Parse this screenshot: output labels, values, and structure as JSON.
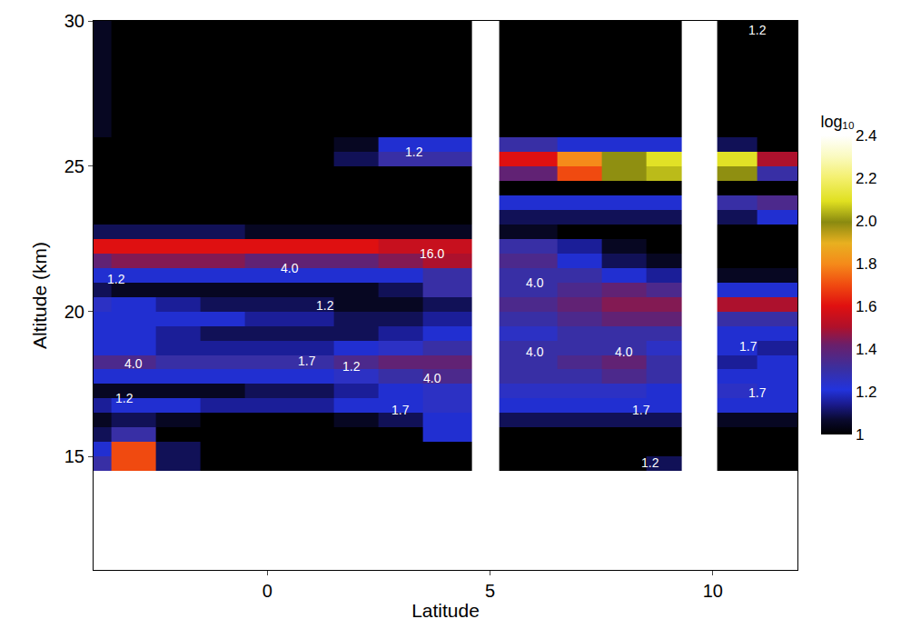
{
  "chart_data": {
    "type": "heatmap",
    "x_label": "Latitude",
    "y_label": "Altitude (km)",
    "xlim": [
      -3.9,
      11.9
    ],
    "ylim": [
      11.1,
      30
    ],
    "xticks": [
      0,
      5,
      10
    ],
    "yticks": [
      15,
      20,
      25,
      30
    ],
    "x_edges": [
      -4.5,
      -3.5,
      -2.5,
      -1.5,
      -0.5,
      0.5,
      1.5,
      2.5,
      3.5,
      4.6,
      5.2,
      6.5,
      7.5,
      8.5,
      9.3,
      10.1,
      11,
      12.5
    ],
    "y_edges": [
      14.5,
      15,
      15.5,
      16,
      16.5,
      17,
      17.5,
      18,
      18.5,
      19,
      19.5,
      20,
      20.5,
      21,
      21.5,
      22,
      22.5,
      23,
      23.5,
      24,
      24.5,
      25,
      25.5,
      26,
      26.5,
      27,
      27.5,
      28,
      28.5,
      29,
      29.5,
      30
    ],
    "z": [
      [
        1.3,
        1.7,
        1.1,
        1,
        1,
        1,
        1,
        1,
        1,
        null,
        1,
        1,
        1,
        1.1,
        null,
        1,
        1
      ],
      [
        1.2,
        1.7,
        1.1,
        1,
        1,
        1,
        1,
        1,
        1,
        null,
        1,
        1,
        1,
        1,
        null,
        1,
        1
      ],
      [
        1.1,
        1.3,
        1,
        1,
        1,
        1,
        1,
        1,
        1.2,
        null,
        1,
        1,
        1,
        1,
        null,
        1,
        1
      ],
      [
        1.05,
        1.1,
        1.05,
        1,
        1,
        1,
        1.05,
        1.1,
        1.2,
        null,
        1.1,
        1.1,
        1.1,
        1.1,
        null,
        1.05,
        1.05
      ],
      [
        1.15,
        1.2,
        1.2,
        1.15,
        1.15,
        1.15,
        1.2,
        1.2,
        1.25,
        null,
        1.2,
        1.2,
        1.2,
        1.2,
        null,
        1.2,
        1.2
      ],
      [
        1.05,
        1.05,
        1.05,
        1.05,
        1.1,
        1.1,
        1.15,
        1.2,
        1.25,
        null,
        1.25,
        1.25,
        1.25,
        1.2,
        null,
        1.25,
        1.2
      ],
      [
        1.2,
        1.2,
        1.2,
        1.2,
        1.2,
        1.2,
        1.25,
        1.3,
        1.35,
        null,
        1.3,
        1.3,
        1.35,
        1.3,
        null,
        1.2,
        1.2
      ],
      [
        1.35,
        1.35,
        1.3,
        1.3,
        1.3,
        1.3,
        1.35,
        1.4,
        1.4,
        null,
        1.3,
        1.35,
        1.4,
        1.3,
        null,
        1.15,
        1.2
      ],
      [
        1.2,
        1.2,
        1.15,
        1.15,
        1.15,
        1.15,
        1.2,
        1.25,
        1.3,
        null,
        1.3,
        1.3,
        1.3,
        1.25,
        null,
        1.2,
        1.15
      ],
      [
        1.2,
        1.2,
        1.15,
        1.1,
        1.1,
        1.1,
        1.1,
        1.15,
        1.2,
        null,
        1.25,
        1.3,
        1.3,
        1.3,
        null,
        1.2,
        1.2
      ],
      [
        1.2,
        1.2,
        1.2,
        1.2,
        1.15,
        1.15,
        1.1,
        1.1,
        1.15,
        null,
        1.3,
        1.35,
        1.4,
        1.4,
        null,
        1.3,
        1.3
      ],
      [
        1.25,
        1.2,
        1.15,
        1.1,
        1.1,
        1.1,
        1.05,
        1.05,
        1.1,
        null,
        1.35,
        1.4,
        1.45,
        1.45,
        null,
        1.5,
        1.5
      ],
      [
        1.1,
        1.05,
        1.05,
        1.05,
        1.05,
        1.05,
        1.05,
        1.1,
        1.3,
        null,
        1.3,
        1.35,
        1.4,
        1.35,
        null,
        1.2,
        1.2
      ],
      [
        1.2,
        1.2,
        1.2,
        1.2,
        1.2,
        1.2,
        1.2,
        1.2,
        1.3,
        null,
        1.3,
        1.3,
        1.2,
        1.15,
        null,
        1.05,
        1.05
      ],
      [
        1.4,
        1.45,
        1.45,
        1.45,
        1.4,
        1.4,
        1.4,
        1.45,
        1.5,
        null,
        1.35,
        1.2,
        1.1,
        1.05,
        null,
        1,
        1
      ],
      [
        1.6,
        1.6,
        1.6,
        1.6,
        1.6,
        1.6,
        1.6,
        1.55,
        1.55,
        null,
        1.3,
        1.15,
        1.05,
        1,
        null,
        1,
        1
      ],
      [
        1.1,
        1.1,
        1.1,
        1.1,
        1.05,
        1.05,
        1.05,
        1.05,
        1.05,
        null,
        1.05,
        1,
        1,
        1,
        null,
        1,
        1
      ],
      [
        1,
        1,
        1,
        1,
        1,
        1,
        1,
        1,
        1,
        null,
        1.1,
        1.1,
        1.1,
        1.1,
        null,
        1.1,
        1.2
      ],
      [
        1,
        1,
        1,
        1,
        1,
        1,
        1,
        1,
        1,
        null,
        1.2,
        1.2,
        1.2,
        1.2,
        null,
        1.3,
        1.35
      ],
      [
        1,
        1,
        1,
        1,
        1,
        1,
        1,
        1,
        1,
        null,
        1,
        1,
        1,
        1,
        null,
        1,
        1
      ],
      [
        1,
        1,
        1,
        1,
        1,
        1,
        1,
        1,
        1,
        null,
        1.4,
        1.7,
        2.0,
        2.05,
        null,
        2.0,
        1.3
      ],
      [
        1,
        1,
        1,
        1,
        1,
        1,
        1.1,
        1.3,
        1.3,
        null,
        1.6,
        1.8,
        2.0,
        2.1,
        null,
        2.1,
        1.5
      ],
      [
        1,
        1,
        1,
        1,
        1,
        1,
        1.05,
        1.2,
        1.2,
        null,
        1.3,
        1.2,
        1.2,
        1.2,
        null,
        1.1,
        1
      ],
      [
        1.05,
        1,
        1,
        1,
        1,
        1,
        1,
        1,
        1,
        null,
        1,
        1,
        1,
        1,
        null,
        1,
        1
      ],
      [
        1.05,
        1,
        1,
        1,
        1,
        1,
        1,
        1,
        1,
        null,
        1,
        1,
        1,
        1,
        null,
        1,
        1
      ],
      [
        1.05,
        1,
        1,
        1,
        1,
        1,
        1,
        1,
        1,
        null,
        1,
        1,
        1,
        1,
        null,
        1,
        1
      ],
      [
        1.05,
        1,
        1,
        1,
        1,
        1,
        1,
        1,
        1,
        null,
        1,
        1,
        1,
        1,
        null,
        1,
        1
      ],
      [
        1.05,
        1,
        1,
        1,
        1,
        1,
        1,
        1,
        1,
        null,
        1,
        1,
        1,
        1,
        null,
        1,
        1
      ],
      [
        1.05,
        1,
        1,
        1,
        1,
        1,
        1,
        1,
        1,
        null,
        1,
        1,
        1,
        1,
        null,
        1,
        1
      ],
      [
        1.05,
        1,
        1,
        1,
        1,
        1,
        1,
        1,
        1,
        null,
        1,
        1,
        1,
        1,
        null,
        1,
        1
      ],
      [
        1.05,
        1,
        1,
        1,
        1,
        1,
        1,
        1,
        1,
        null,
        1,
        1,
        1,
        1,
        null,
        1,
        1
      ]
    ],
    "colorbar": {
      "title": "log₁₀",
      "range": [
        1,
        2.4
      ],
      "ticks": [
        1,
        1.2,
        1.4,
        1.6,
        1.8,
        {
          "value": 2,
          "label": "2.0"
        },
        2.2,
        2.4
      ]
    },
    "annotations": [
      {
        "text": "16.0",
        "x": 3.7,
        "y": 22.0
      },
      {
        "text": "4.0",
        "x": 0.5,
        "y": 21.5
      },
      {
        "text": "1.2",
        "x": 1.3,
        "y": 20.2
      },
      {
        "text": "1.2",
        "x": -3.4,
        "y": 21.1
      },
      {
        "text": "4.0",
        "x": -3.0,
        "y": 18.2
      },
      {
        "text": "1.7",
        "x": 0.9,
        "y": 18.3
      },
      {
        "text": "1.2",
        "x": 1.9,
        "y": 18.1
      },
      {
        "text": "4.0",
        "x": 3.7,
        "y": 17.7
      },
      {
        "text": "1.2",
        "x": -3.2,
        "y": 17.0
      },
      {
        "text": "1.7",
        "x": 3.0,
        "y": 16.6
      },
      {
        "text": "1.2",
        "x": 3.3,
        "y": 25.5
      },
      {
        "text": "4.0",
        "x": 6.0,
        "y": 21.0
      },
      {
        "text": "4.0",
        "x": 6.0,
        "y": 18.6
      },
      {
        "text": "4.0",
        "x": 8.0,
        "y": 18.6
      },
      {
        "text": "1.7",
        "x": 8.4,
        "y": 16.6
      },
      {
        "text": "1.7",
        "x": 10.8,
        "y": 18.8
      },
      {
        "text": "1.7",
        "x": 11.0,
        "y": 17.2
      },
      {
        "text": "1.2",
        "x": 8.6,
        "y": 14.8
      },
      {
        "text": "1.2",
        "x": 11.0,
        "y": 29.7
      }
    ]
  }
}
